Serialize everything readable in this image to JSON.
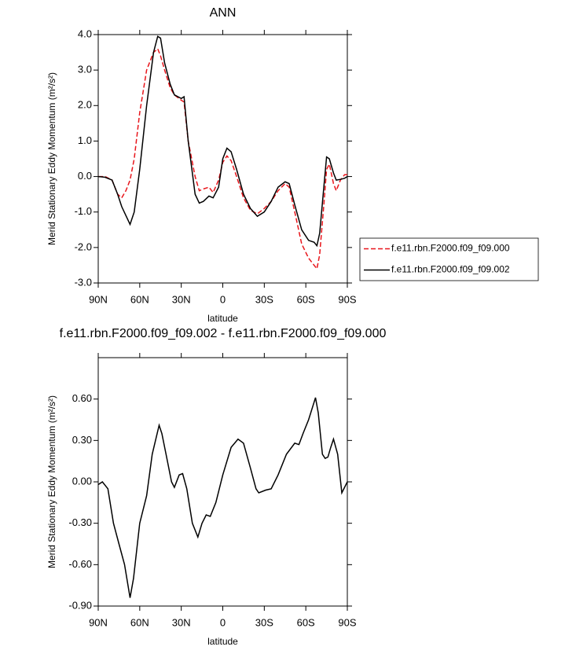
{
  "chart_data": [
    {
      "type": "line",
      "title": "ANN",
      "x_label": "latitude",
      "y_label": "Merid Stationary Eddy Momentum (m²/s²)",
      "x": [
        90,
        85,
        80,
        76,
        73,
        70,
        67,
        64,
        60,
        55,
        50,
        47,
        45,
        42,
        38,
        35,
        30,
        28,
        25,
        20,
        17,
        14,
        10,
        7,
        3,
        0,
        -3,
        -6,
        -10,
        -15,
        -20,
        -25,
        -30,
        -35,
        -40,
        -45,
        -48,
        -52,
        -57,
        -62,
        -66,
        -68,
        -70,
        -73,
        -75,
        -77,
        -80,
        -82,
        -85,
        -88,
        -90
      ],
      "series": [
        {
          "name": "f.e11.rbn.F2000.f09_f09.000",
          "color": "#e8151b",
          "dash": true,
          "values": [
            0,
            0,
            -0.1,
            -0.5,
            -0.6,
            -0.4,
            -0.1,
            0.5,
            1.8,
            3.0,
            3.5,
            3.6,
            3.4,
            3.0,
            2.5,
            2.3,
            2.15,
            2.1,
            1.0,
            0.0,
            -0.4,
            -0.35,
            -0.3,
            -0.45,
            -0.1,
            0.4,
            0.58,
            0.45,
            0.0,
            -0.6,
            -0.95,
            -1.05,
            -0.9,
            -0.7,
            -0.4,
            -0.2,
            -0.3,
            -1.0,
            -1.9,
            -2.3,
            -2.5,
            -2.6,
            -2.2,
            -0.8,
            0.2,
            0.35,
            -0.2,
            -0.4,
            -0.1,
            0.05,
            0.05
          ]
        },
        {
          "name": "f.e11.rbn.F2000.f09_f09.002",
          "color": "#000000",
          "dash": false,
          "values": [
            0,
            -0.02,
            -0.1,
            -0.5,
            -0.85,
            -1.1,
            -1.35,
            -1.0,
            0.2,
            2.0,
            3.5,
            3.95,
            3.9,
            3.2,
            2.6,
            2.3,
            2.2,
            2.25,
            1.0,
            -0.5,
            -0.75,
            -0.7,
            -0.55,
            -0.6,
            -0.3,
            0.5,
            0.8,
            0.7,
            0.2,
            -0.5,
            -0.9,
            -1.12,
            -1.0,
            -0.7,
            -0.3,
            -0.15,
            -0.2,
            -0.8,
            -1.5,
            -1.8,
            -1.85,
            -1.95,
            -1.6,
            -0.3,
            0.55,
            0.5,
            0.1,
            -0.1,
            -0.08,
            -0.05,
            0
          ]
        }
      ],
      "xlim": [
        90,
        -90
      ],
      "xticks": [
        {
          "value": 90,
          "label": "90N"
        },
        {
          "value": 60,
          "label": "60N"
        },
        {
          "value": 30,
          "label": "30N"
        },
        0,
        {
          "value": -30,
          "label": "30S"
        },
        {
          "value": -60,
          "label": "60S"
        },
        {
          "value": -90,
          "label": "90S"
        }
      ],
      "ylim": [
        -3,
        4
      ],
      "yticks": [
        {
          "value": -3,
          "label": "-3.0"
        },
        {
          "value": -2,
          "label": "-2.0"
        },
        {
          "value": -1,
          "label": "-1.0"
        },
        {
          "value": 0,
          "label": "0.0"
        },
        {
          "value": 1,
          "label": "1.0"
        },
        {
          "value": 2,
          "label": "2.0"
        },
        {
          "value": 3,
          "label": "3.0"
        },
        {
          "value": 4,
          "label": "4.0"
        }
      ],
      "legend": "right"
    },
    {
      "type": "line",
      "title": "f.e11.rbn.F2000.f09_f09.002 - f.e11.rbn.F2000.f09_f09.000",
      "x_label": "latitude",
      "y_label": "Merid Stationary Eddy Momentum (m²/s²)",
      "x": [
        90,
        87,
        83,
        79,
        75,
        71,
        67,
        64.5,
        60,
        55,
        51,
        46,
        44,
        41,
        37,
        35,
        31.5,
        29,
        26,
        22,
        18,
        15,
        12,
        9,
        5,
        0,
        -6,
        -11,
        -15,
        -20,
        -24,
        -26,
        -31,
        -35,
        -40,
        -46,
        -52,
        -55,
        -58,
        -62,
        -67,
        -69,
        -72,
        -74,
        -76,
        -78,
        -80,
        -83,
        -86,
        -90
      ],
      "values": [
        -0.02,
        0,
        -0.05,
        -0.3,
        -0.45,
        -0.6,
        -0.84,
        -0.7,
        -0.3,
        -0.1,
        0.2,
        0.41,
        0.35,
        0.2,
        0,
        -0.04,
        0.05,
        0.06,
        -0.05,
        -0.3,
        -0.4,
        -0.3,
        -0.24,
        -0.25,
        -0.15,
        0.05,
        0.25,
        0.31,
        0.28,
        0.1,
        -0.05,
        -0.08,
        -0.06,
        -0.05,
        0.05,
        0.2,
        0.28,
        0.27,
        0.35,
        0.45,
        0.61,
        0.5,
        0.2,
        0.17,
        0.18,
        0.25,
        0.31,
        0.2,
        -0.08,
        0
      ],
      "color": "#000000",
      "xlim": [
        90,
        -90
      ],
      "xticks": [
        {
          "value": 90,
          "label": "90N"
        },
        {
          "value": 60,
          "label": "60N"
        },
        {
          "value": 30,
          "label": "30N"
        },
        0,
        {
          "value": -30,
          "label": "30S"
        },
        {
          "value": -60,
          "label": "60S"
        },
        {
          "value": -90,
          "label": "90S"
        }
      ],
      "ylim": [
        -0.9,
        0.9
      ],
      "yticks": [
        {
          "value": -0.9,
          "label": "-0.90"
        },
        {
          "value": -0.6,
          "label": "-0.60"
        },
        {
          "value": -0.3,
          "label": "-0.30"
        },
        {
          "value": 0,
          "label": "0.00"
        },
        {
          "value": 0.3,
          "label": "0.30"
        },
        {
          "value": 0.6,
          "label": "0.60"
        }
      ]
    }
  ]
}
